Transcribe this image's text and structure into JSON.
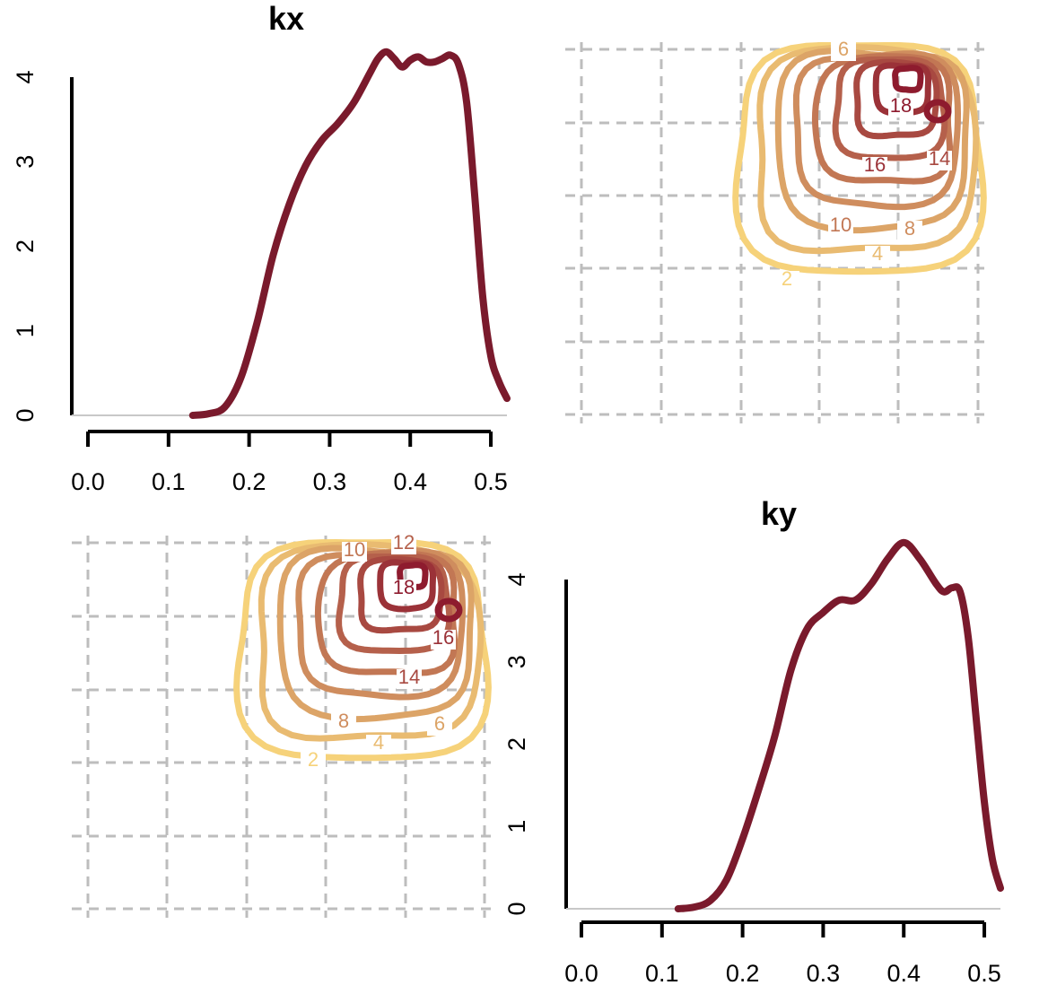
{
  "colors": {
    "density": "#7a1a2c",
    "grid": "#bdbdbd",
    "contour_low": "#f6d27a",
    "contour_high": "#8e1b2e"
  },
  "chart_data": [
    {
      "panel": "top-left",
      "type": "line",
      "title": "kx",
      "xlim": [
        0.0,
        0.52
      ],
      "ylim": [
        0,
        4
      ],
      "xticks": [
        "0.0",
        "0.1",
        "0.2",
        "0.3",
        "0.4",
        "0.5"
      ],
      "yticks": [
        "0",
        "1",
        "2",
        "3",
        "4"
      ],
      "series": [
        {
          "x": [
            0.13,
            0.15,
            0.17,
            0.19,
            0.21,
            0.23,
            0.25,
            0.27,
            0.29,
            0.31,
            0.33,
            0.35,
            0.36,
            0.37,
            0.38,
            0.39,
            0.4,
            0.41,
            0.42,
            0.43,
            0.44,
            0.45,
            0.46,
            0.47,
            0.48,
            0.49,
            0.5,
            0.51,
            0.52
          ],
          "y": [
            0.0,
            0.02,
            0.1,
            0.45,
            1.1,
            1.9,
            2.5,
            2.95,
            3.25,
            3.45,
            3.7,
            4.05,
            4.22,
            4.3,
            4.22,
            4.12,
            4.2,
            4.24,
            4.18,
            4.18,
            4.22,
            4.26,
            4.15,
            3.7,
            2.6,
            1.4,
            0.7,
            0.4,
            0.2
          ]
        }
      ]
    },
    {
      "panel": "top-right",
      "type": "contour",
      "levels": [
        2,
        4,
        6,
        8,
        10,
        12,
        14,
        16,
        18
      ],
      "labels": [
        "2",
        "4",
        "6",
        "8",
        "10",
        "14",
        "16",
        "18"
      ]
    },
    {
      "panel": "bottom-left",
      "type": "contour",
      "levels": [
        2,
        4,
        6,
        8,
        10,
        12,
        14,
        16,
        18
      ],
      "labels": [
        "2",
        "4",
        "6",
        "8",
        "10",
        "12",
        "14",
        "16",
        "18"
      ]
    },
    {
      "panel": "bottom-right",
      "type": "line",
      "title": "ky",
      "xlim": [
        0.0,
        0.52
      ],
      "ylim": [
        0,
        4
      ],
      "xticks": [
        "0.0",
        "0.1",
        "0.2",
        "0.3",
        "0.4",
        "0.5"
      ],
      "yticks": [
        "0",
        "1",
        "2",
        "3",
        "4"
      ],
      "series": [
        {
          "x": [
            0.12,
            0.14,
            0.16,
            0.18,
            0.2,
            0.22,
            0.24,
            0.26,
            0.28,
            0.3,
            0.32,
            0.34,
            0.36,
            0.38,
            0.4,
            0.42,
            0.44,
            0.45,
            0.46,
            0.47,
            0.48,
            0.49,
            0.5,
            0.51,
            0.52
          ],
          "y": [
            0.0,
            0.02,
            0.1,
            0.35,
            0.85,
            1.45,
            2.1,
            2.9,
            3.4,
            3.6,
            3.75,
            3.75,
            3.95,
            4.25,
            4.45,
            4.25,
            3.95,
            3.85,
            3.9,
            3.85,
            3.3,
            2.3,
            1.3,
            0.6,
            0.25
          ]
        }
      ]
    }
  ]
}
